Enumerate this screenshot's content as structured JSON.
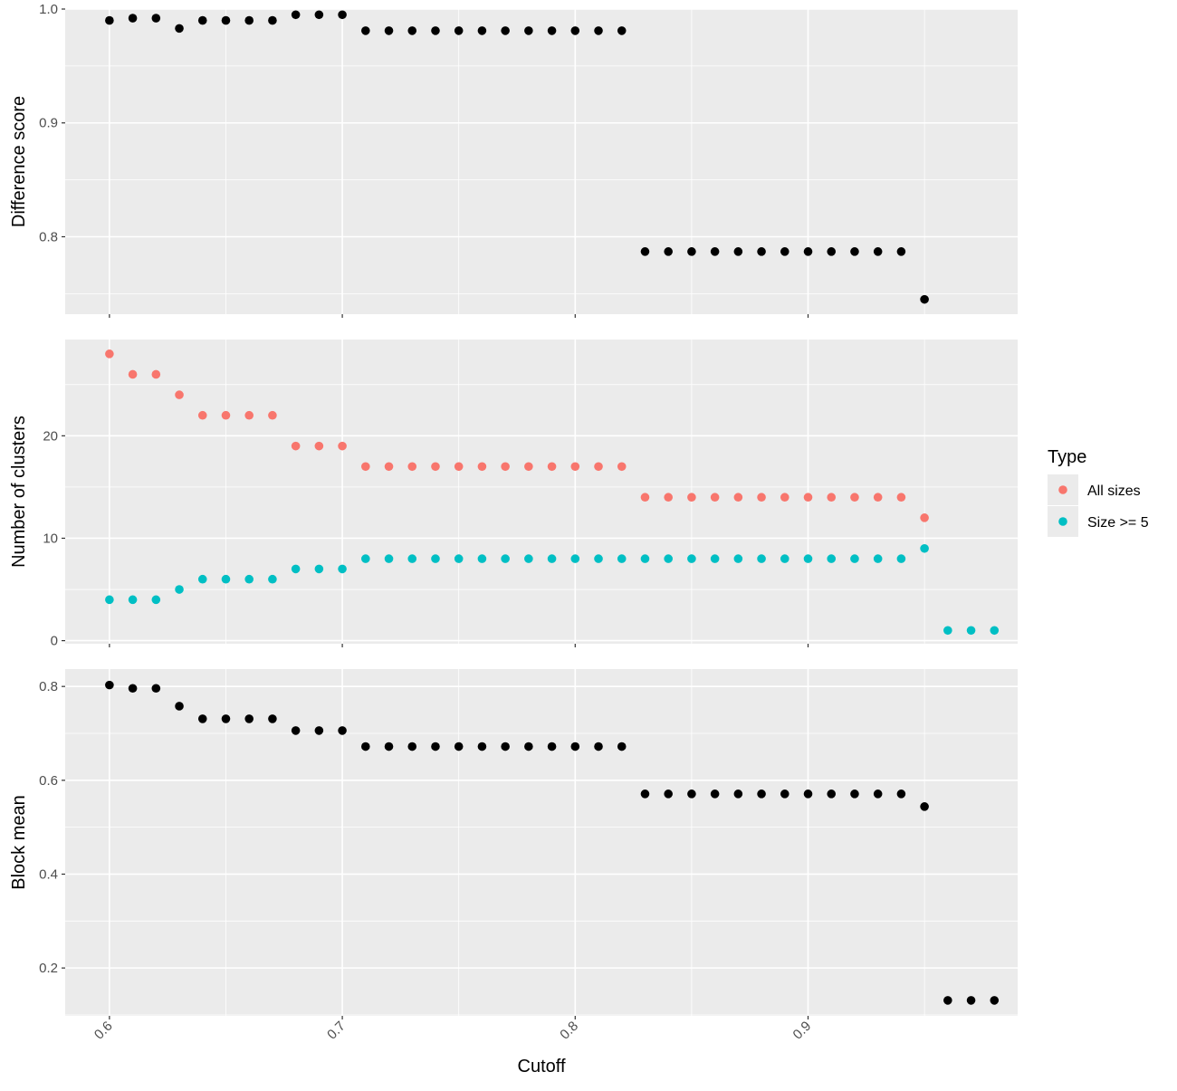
{
  "chart_data": [
    {
      "type": "scatter",
      "title": "",
      "xlabel": "",
      "ylabel": "Difference score",
      "xlim": [
        0.581,
        0.99
      ],
      "ylim": [
        0.732,
        1.0
      ],
      "xticks": [
        0.6,
        0.7,
        0.8,
        0.9
      ],
      "xtick_labels": [
        "",
        "",
        "",
        ""
      ],
      "yticks": [
        0.8,
        0.9,
        1.0
      ],
      "ytick_labels": [
        "0.8",
        "0.9",
        "1.0"
      ],
      "grid": true,
      "series": [
        {
          "color": "#000000",
          "x": [
            0.6,
            0.61,
            0.62,
            0.63,
            0.64,
            0.65,
            0.66,
            0.67,
            0.68,
            0.69,
            0.7,
            0.71,
            0.72,
            0.73,
            0.74,
            0.75,
            0.76,
            0.77,
            0.78,
            0.79,
            0.8,
            0.81,
            0.82,
            0.83,
            0.84,
            0.85,
            0.86,
            0.87,
            0.88,
            0.89,
            0.9,
            0.91,
            0.92,
            0.93,
            0.94,
            0.95
          ],
          "y": [
            0.99,
            0.992,
            0.992,
            0.983,
            0.99,
            0.99,
            0.99,
            0.99,
            0.995,
            0.995,
            0.995,
            0.981,
            0.981,
            0.981,
            0.981,
            0.981,
            0.981,
            0.981,
            0.981,
            0.981,
            0.981,
            0.981,
            0.981,
            0.787,
            0.787,
            0.787,
            0.787,
            0.787,
            0.787,
            0.787,
            0.787,
            0.787,
            0.787,
            0.787,
            0.787,
            0.745
          ]
        }
      ]
    },
    {
      "type": "scatter",
      "title": "",
      "xlabel": "",
      "ylabel": "Number of clusters",
      "xlim": [
        0.581,
        0.99
      ],
      "ylim": [
        -0.3,
        29.4
      ],
      "xticks": [
        0.6,
        0.7,
        0.8,
        0.9
      ],
      "xtick_labels": [
        "",
        "",
        "",
        ""
      ],
      "yticks": [
        0,
        10,
        20
      ],
      "ytick_labels": [
        "0",
        "10",
        "20"
      ],
      "grid": true,
      "series": [
        {
          "name": "All sizes",
          "color": "#F8766D",
          "x": [
            0.6,
            0.61,
            0.62,
            0.63,
            0.64,
            0.65,
            0.66,
            0.67,
            0.68,
            0.69,
            0.7,
            0.71,
            0.72,
            0.73,
            0.74,
            0.75,
            0.76,
            0.77,
            0.78,
            0.79,
            0.8,
            0.81,
            0.82,
            0.83,
            0.84,
            0.85,
            0.86,
            0.87,
            0.88,
            0.89,
            0.9,
            0.91,
            0.92,
            0.93,
            0.94,
            0.95
          ],
          "y": [
            28,
            26,
            26,
            24,
            22,
            22,
            22,
            22,
            19,
            19,
            19,
            17,
            17,
            17,
            17,
            17,
            17,
            17,
            17,
            17,
            17,
            17,
            17,
            14,
            14,
            14,
            14,
            14,
            14,
            14,
            14,
            14,
            14,
            14,
            14,
            12
          ]
        },
        {
          "name": "Size >= 5",
          "color": "#00BFC4",
          "x": [
            0.6,
            0.61,
            0.62,
            0.63,
            0.64,
            0.65,
            0.66,
            0.67,
            0.68,
            0.69,
            0.7,
            0.71,
            0.72,
            0.73,
            0.74,
            0.75,
            0.76,
            0.77,
            0.78,
            0.79,
            0.8,
            0.81,
            0.82,
            0.83,
            0.84,
            0.85,
            0.86,
            0.87,
            0.88,
            0.89,
            0.9,
            0.91,
            0.92,
            0.93,
            0.94,
            0.95,
            0.96,
            0.97,
            0.98
          ],
          "y": [
            4,
            4,
            4,
            5,
            6,
            6,
            6,
            6,
            7,
            7,
            7,
            8,
            8,
            8,
            8,
            8,
            8,
            8,
            8,
            8,
            8,
            8,
            8,
            8,
            8,
            8,
            8,
            8,
            8,
            8,
            8,
            8,
            8,
            8,
            8,
            9,
            1,
            1,
            1
          ]
        }
      ]
    },
    {
      "type": "scatter",
      "title": "",
      "xlabel": "Cutoff",
      "ylabel": "Block mean",
      "xlim": [
        0.581,
        0.99
      ],
      "ylim": [
        0.098,
        0.837
      ],
      "xticks": [
        0.6,
        0.7,
        0.8,
        0.9
      ],
      "xtick_labels": [
        "0.6",
        "0.7",
        "0.8",
        "0.9"
      ],
      "yticks": [
        0.2,
        0.4,
        0.6,
        0.8
      ],
      "ytick_labels": [
        "0.2",
        "0.4",
        "0.6",
        "0.8"
      ],
      "grid": true,
      "series": [
        {
          "color": "#000000",
          "x": [
            0.6,
            0.61,
            0.62,
            0.63,
            0.64,
            0.65,
            0.66,
            0.67,
            0.68,
            0.69,
            0.7,
            0.71,
            0.72,
            0.73,
            0.74,
            0.75,
            0.76,
            0.77,
            0.78,
            0.79,
            0.8,
            0.81,
            0.82,
            0.83,
            0.84,
            0.85,
            0.86,
            0.87,
            0.88,
            0.89,
            0.9,
            0.91,
            0.92,
            0.93,
            0.94,
            0.95,
            0.96,
            0.97,
            0.98
          ],
          "y": [
            0.803,
            0.796,
            0.796,
            0.758,
            0.731,
            0.731,
            0.731,
            0.731,
            0.706,
            0.706,
            0.706,
            0.672,
            0.672,
            0.672,
            0.672,
            0.672,
            0.672,
            0.672,
            0.672,
            0.672,
            0.672,
            0.672,
            0.672,
            0.571,
            0.571,
            0.571,
            0.571,
            0.571,
            0.571,
            0.571,
            0.571,
            0.571,
            0.571,
            0.571,
            0.571,
            0.544,
            0.131,
            0.131,
            0.131
          ]
        }
      ]
    }
  ],
  "legend": {
    "title": "Type",
    "placement": "right",
    "items": [
      {
        "label": "All sizes",
        "color": "#F8766D"
      },
      {
        "label": "Size >= 5",
        "color": "#00BFC4"
      }
    ]
  },
  "colors": {
    "panel_background": "#EBEBEB",
    "grid_line": "#FFFFFF",
    "tick_text": "#4D4D4D",
    "tick_mark": "#333333"
  }
}
